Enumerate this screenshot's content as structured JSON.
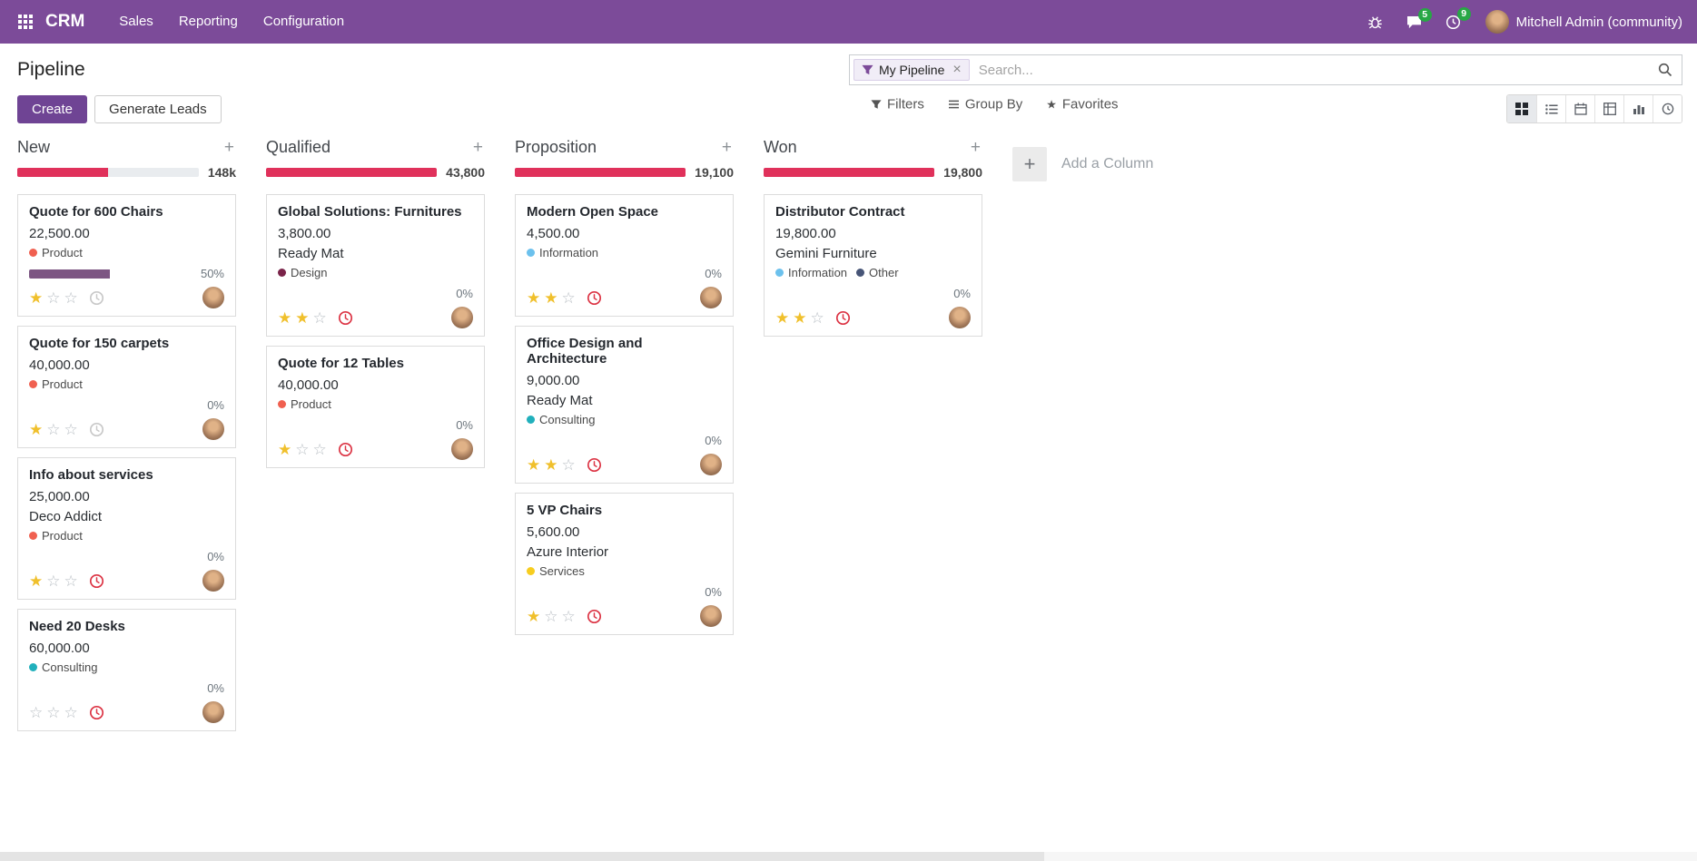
{
  "navbar": {
    "app_name": "CRM",
    "menus": [
      "Sales",
      "Reporting",
      "Configuration"
    ],
    "messages_badge": "5",
    "activities_badge": "9",
    "user_name": "Mitchell Admin (community)"
  },
  "control_panel": {
    "title": "Pipeline",
    "create_label": "Create",
    "generate_leads_label": "Generate Leads",
    "search_facet": "My Pipeline",
    "search_placeholder": "Search...",
    "filters_label": "Filters",
    "group_by_label": "Group By",
    "favorites_label": "Favorites"
  },
  "kanban": {
    "add_column_label": "Add a Column",
    "columns": [
      {
        "name": "New",
        "counter": "148k",
        "progress_percent": 50,
        "cards": [
          {
            "title": "Quote for 600 Chairs",
            "amount": "22,500.00",
            "partner": "",
            "tags": [
              {
                "label": "Product",
                "color": "#f06050"
              }
            ],
            "bar_percent": 50,
            "percent_label": "50%",
            "stars": 1,
            "clock": "gray"
          },
          {
            "title": "Quote for 150 carpets",
            "amount": "40,000.00",
            "partner": "",
            "tags": [
              {
                "label": "Product",
                "color": "#f06050"
              }
            ],
            "percent_label": "0%",
            "stars": 1,
            "clock": "gray"
          },
          {
            "title": "Info about services",
            "amount": "25,000.00",
            "partner": "Deco Addict",
            "tags": [
              {
                "label": "Product",
                "color": "#f06050"
              }
            ],
            "percent_label": "0%",
            "stars": 1,
            "clock": "red"
          },
          {
            "title": "Need 20 Desks",
            "amount": "60,000.00",
            "partner": "",
            "tags": [
              {
                "label": "Consulting",
                "color": "#21b0bc"
              }
            ],
            "percent_label": "0%",
            "stars": 0,
            "clock": "red"
          }
        ]
      },
      {
        "name": "Qualified",
        "counter": "43,800",
        "progress_percent": 100,
        "cards": [
          {
            "title": "Global Solutions: Furnitures",
            "amount": "3,800.00",
            "partner": "Ready Mat",
            "tags": [
              {
                "label": "Design",
                "color": "#7a2449"
              }
            ],
            "percent_label": "0%",
            "stars": 2,
            "clock": "red"
          },
          {
            "title": "Quote for 12 Tables",
            "amount": "40,000.00",
            "partner": "",
            "tags": [
              {
                "label": "Product",
                "color": "#f06050"
              }
            ],
            "percent_label": "0%",
            "stars": 1,
            "clock": "red"
          }
        ]
      },
      {
        "name": "Proposition",
        "counter": "19,100",
        "progress_percent": 100,
        "cards": [
          {
            "title": "Modern Open Space",
            "amount": "4,500.00",
            "partner": "",
            "tags": [
              {
                "label": "Information",
                "color": "#6cc1ed"
              }
            ],
            "percent_label": "0%",
            "stars": 2,
            "clock": "red"
          },
          {
            "title": "Office Design and Architecture",
            "amount": "9,000.00",
            "partner": "Ready Mat",
            "tags": [
              {
                "label": "Consulting",
                "color": "#21b0bc"
              }
            ],
            "percent_label": "0%",
            "stars": 2,
            "clock": "red"
          },
          {
            "title": "5 VP Chairs",
            "amount": "5,600.00",
            "partner": "Azure Interior",
            "tags": [
              {
                "label": "Services",
                "color": "#f7cd1f"
              }
            ],
            "percent_label": "0%",
            "stars": 1,
            "clock": "red"
          }
        ]
      },
      {
        "name": "Won",
        "counter": "19,800",
        "progress_percent": 100,
        "cards": [
          {
            "title": "Distributor Contract",
            "amount": "19,800.00",
            "partner": "Gemini Furniture",
            "tags": [
              {
                "label": "Information",
                "color": "#6cc1ed"
              },
              {
                "label": "Other",
                "color": "#475577"
              }
            ],
            "percent_label": "0%",
            "stars": 2,
            "clock": "red"
          }
        ]
      }
    ]
  },
  "icons": {
    "apps_grid": "3x3-grid",
    "bug": "bug",
    "messages": "chat-bubble",
    "activities": "clock",
    "filter": "funnel",
    "search": "magnifier",
    "favorites": "star",
    "kanban_view": "grid-2x2",
    "list_view": "list",
    "calendar_view": "calendar",
    "pivot_view": "table",
    "graph_view": "bar-chart",
    "activity_view": "clock",
    "star_filled": "★",
    "star_empty": "☆",
    "close": "×",
    "plus": "+"
  },
  "colors": {
    "brand": "#7c4b99",
    "brand_button": "#6f4494",
    "progress_red": "#e0315b",
    "star_gold": "#f0c02c",
    "clock_red": "#dc3545",
    "badge_green": "#28a745",
    "card_bar_purple": "#7d5683"
  }
}
